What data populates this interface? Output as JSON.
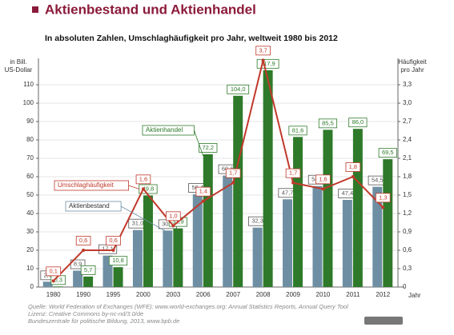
{
  "chart_data": {
    "type": "bar",
    "title": "Aktienbestand und Aktienhandel",
    "subtitle": "In absoluten Zahlen, Umschlaghäufigkeit pro Jahr, weltweit 1980 bis 2012",
    "y_label": [
      "in Bill.",
      "US-Dollar"
    ],
    "y2_label": [
      "Häufigkeit",
      "pro Jahr"
    ],
    "x_label": "Jahr",
    "categories": [
      "1980",
      "1990",
      "1995",
      "2000",
      "2003",
      "2006",
      "2007",
      "2008",
      "2009",
      "2010",
      "2011",
      "2012"
    ],
    "series": [
      {
        "name": "Aktienbestand",
        "color": "#6e8fa3",
        "type": "bar",
        "values": [
          2.9,
          8.9,
          17.1,
          31.0,
          30.7,
          50.4,
          60.6,
          32.3,
          47.7,
          54.9,
          47.4,
          54.5
        ],
        "value_labels": [
          "2,9",
          "8,9",
          "17,1",
          "31,0",
          "30,7",
          "50,4",
          "60,6",
          "32,3",
          "47,7",
          "54,9",
          "47,4",
          "54,5"
        ]
      },
      {
        "name": "Aktienhandel",
        "color": "#2e7a2a",
        "type": "bar",
        "values": [
          0.3,
          5.7,
          10.8,
          49.8,
          31.9,
          72.2,
          104.0,
          117.9,
          81.6,
          85.5,
          86.0,
          69.5
        ],
        "value_labels": [
          "0,3",
          "5,7",
          "10,8",
          "49,8",
          "31,9",
          "72,2",
          "104,0",
          "117,9",
          "81,6",
          "85,5",
          "86,0",
          "69,5"
        ]
      },
      {
        "name": "Umschlaghäufigkeit",
        "color": "#c0392b",
        "type": "line",
        "axis": "y2",
        "values": [
          0.1,
          0.6,
          0.6,
          1.6,
          1.0,
          1.4,
          1.7,
          3.7,
          1.7,
          1.6,
          1.8,
          1.3
        ],
        "value_labels": [
          "0,1",
          "0,6",
          "0,6",
          "1,6",
          "1,0",
          "1,4",
          "1,7",
          "3,7",
          "1,7",
          "1,6",
          "1,8",
          "1,3"
        ]
      }
    ],
    "ylim": [
      0,
      120
    ],
    "yticks": [
      0,
      10,
      20,
      30,
      40,
      50,
      60,
      70,
      80,
      90,
      100,
      110
    ],
    "y2lim": [
      0,
      3.6
    ],
    "y2ticks": [
      0,
      {
        "value": 0.3,
        "label": "0,3"
      },
      {
        "value": 0.6,
        "label": "0,6"
      },
      {
        "value": 0.9,
        "label": "0,9"
      },
      {
        "value": 1.2,
        "label": "1,2"
      },
      {
        "value": 1.5,
        "label": "1,5"
      },
      {
        "value": 1.8,
        "label": "1,8"
      },
      {
        "value": 2.1,
        "label": "2,1"
      },
      {
        "value": 2.4,
        "label": "2,4"
      },
      {
        "value": 2.7,
        "label": "2,7"
      },
      {
        "value": 3.0,
        "label": "3,0"
      },
      {
        "value": 3.3,
        "label": "3,3"
      }
    ],
    "grid": true,
    "source": [
      "Quelle: World Federation of Exchanges (WFE): www.world-exchanges.org: Annual Statistics Reports, Annual Query Tool",
      "Lizenz: Creative Commons by-nc-nd/3.0/de",
      "Bundeszentrale für politische Bildung, 2013, www.bpb.de"
    ]
  }
}
